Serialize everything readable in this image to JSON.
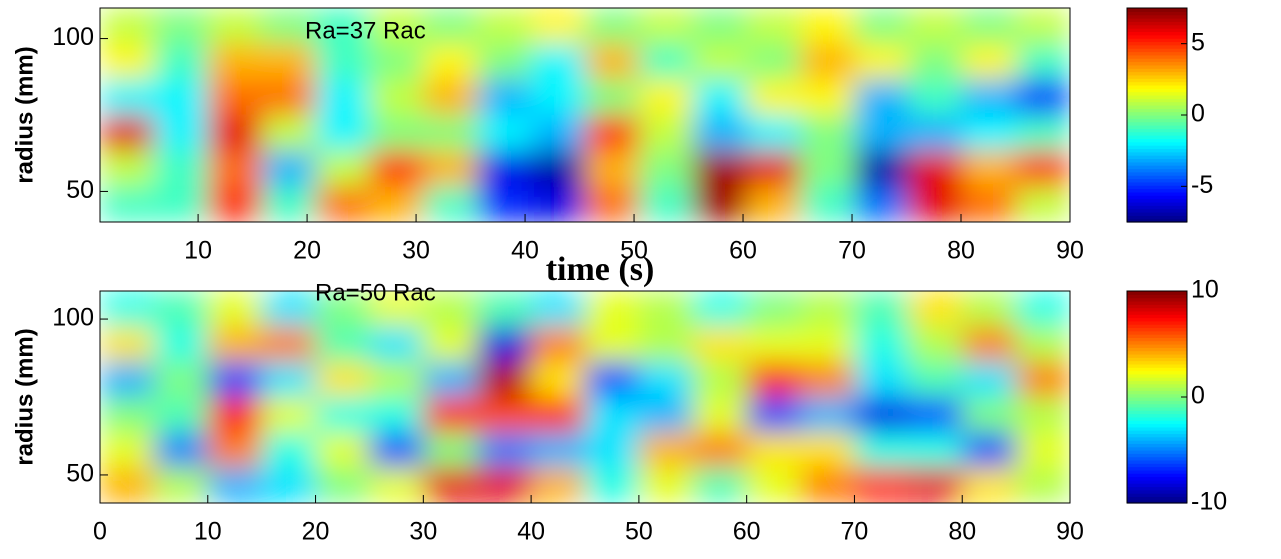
{
  "chart_data": [
    {
      "type": "heatmap",
      "annotation": "Ra=37 Rac",
      "ylabel": "radius (mm)",
      "xlabel": "time (s)",
      "colormap": "jet",
      "xlim": [
        1,
        90
      ],
      "ylim": [
        40,
        110
      ],
      "xticks": [
        10,
        20,
        30,
        40,
        50,
        60,
        70,
        80,
        90
      ],
      "yticks": [
        50,
        100
      ],
      "clim": [
        -7.5,
        7.5
      ],
      "cticks": [
        -5,
        0,
        5
      ],
      "z": [
        [
          1,
          0,
          1,
          0,
          -1,
          1,
          0,
          1,
          2,
          0,
          1,
          0,
          1,
          2,
          0,
          1,
          0,
          1
        ],
        [
          2,
          -1,
          3,
          3,
          -1,
          0,
          2,
          0,
          -2,
          3,
          -1,
          1,
          0,
          3,
          2,
          0,
          2,
          -1
        ],
        [
          -2,
          -2,
          4,
          4,
          -2,
          1,
          3,
          -3,
          -2,
          0,
          2,
          -2,
          2,
          2,
          -3,
          -1,
          -3,
          -5
        ],
        [
          6,
          -2,
          6,
          1,
          -2,
          0,
          0,
          -2,
          -3,
          5,
          1,
          -3,
          -2,
          0,
          -3,
          -3,
          -2,
          -1
        ],
        [
          1,
          -1,
          4,
          -3,
          1,
          5,
          3,
          -6,
          -7,
          3,
          0,
          7,
          6,
          0,
          -7,
          6,
          3,
          5
        ],
        [
          -1,
          -1,
          5,
          -1,
          4,
          3,
          -1,
          -5,
          -6,
          4,
          -1,
          7,
          3,
          -1,
          -4,
          6,
          4,
          1
        ]
      ]
    },
    {
      "type": "heatmap",
      "annotation": "Ra=50 Rac",
      "ylabel": "radius (mm)",
      "colormap": "jet",
      "xlim": [
        0,
        90
      ],
      "ylim": [
        41,
        109
      ],
      "xticks": [
        0,
        10,
        20,
        30,
        40,
        50,
        60,
        70,
        80,
        90
      ],
      "yticks": [
        50,
        100
      ],
      "clim": [
        -10,
        10
      ],
      "cticks": [
        -10,
        0,
        10
      ],
      "z": [
        [
          -2,
          -1,
          2,
          -3,
          0,
          2,
          1,
          -1,
          -3,
          2,
          1,
          -2,
          0,
          1,
          -1,
          3,
          1,
          -2
        ],
        [
          3,
          -2,
          4,
          5,
          -1,
          -3,
          2,
          -8,
          5,
          2,
          1,
          3,
          2,
          2,
          -2,
          1,
          5,
          1
        ],
        [
          -4,
          0,
          -6,
          -3,
          3,
          1,
          -4,
          9,
          3,
          -6,
          -3,
          1,
          7,
          5,
          -3,
          -1,
          -3,
          5
        ],
        [
          0,
          -1,
          7,
          2,
          -2,
          -2,
          7,
          6,
          7,
          -3,
          -4,
          2,
          -6,
          -4,
          -8,
          -6,
          0,
          1
        ],
        [
          2,
          -5,
          5,
          -2,
          2,
          -6,
          0,
          -5,
          -4,
          -3,
          4,
          5,
          3,
          3,
          -2,
          -2,
          -6,
          2
        ],
        [
          4,
          1,
          -4,
          -3,
          0,
          2,
          8,
          8,
          4,
          -2,
          2,
          -1,
          2,
          5,
          7,
          8,
          3,
          1
        ]
      ]
    }
  ]
}
